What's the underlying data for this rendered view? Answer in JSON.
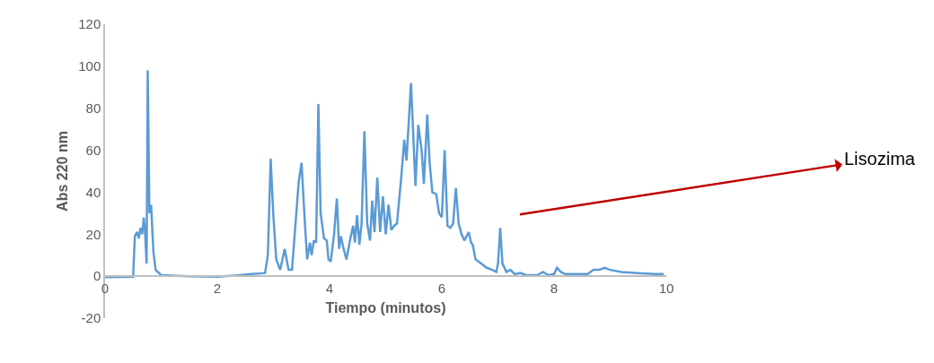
{
  "chart_data": {
    "type": "line",
    "xlabel": "Tiempo (minutos)",
    "ylabel": "Abs 220 nm",
    "x": [
      0,
      0.5,
      0.53,
      0.57,
      0.6,
      0.63,
      0.66,
      0.69,
      0.71,
      0.74,
      0.76,
      0.79,
      0.82,
      0.86,
      0.9,
      1.0,
      1.5,
      2.0,
      2.4,
      2.6,
      2.85,
      2.9,
      2.95,
      3.0,
      3.05,
      3.12,
      3.2,
      3.27,
      3.33,
      3.45,
      3.5,
      3.55,
      3.6,
      3.65,
      3.68,
      3.72,
      3.76,
      3.8,
      3.84,
      3.9,
      3.95,
      3.98,
      4.02,
      4.08,
      4.13,
      4.17,
      4.2,
      4.25,
      4.3,
      4.37,
      4.42,
      4.45,
      4.49,
      4.53,
      4.57,
      4.62,
      4.67,
      4.72,
      4.76,
      4.8,
      4.85,
      4.9,
      4.95,
      5.0,
      5.05,
      5.1,
      5.15,
      5.2,
      5.28,
      5.33,
      5.37,
      5.45,
      5.53,
      5.58,
      5.64,
      5.68,
      5.74,
      5.78,
      5.83,
      5.9,
      5.95,
      6.0,
      6.05,
      6.1,
      6.15,
      6.2,
      6.25,
      6.3,
      6.35,
      6.4,
      6.48,
      6.52,
      6.55,
      6.6,
      6.7,
      6.8,
      6.9,
      6.97,
      7.0,
      7.04,
      7.08,
      7.15,
      7.22,
      7.3,
      7.4,
      7.5,
      7.7,
      7.8,
      7.9,
      8.0,
      8.05,
      8.12,
      8.2,
      8.5,
      8.6,
      8.7,
      8.8,
      8.9,
      9.0,
      9.2,
      9.5,
      9.8,
      9.95
    ],
    "series": [
      {
        "color": "#5b9bd5",
        "values": [
          -0.5,
          -0.3,
          19,
          21,
          18,
          23,
          20,
          28,
          22,
          6,
          98,
          30,
          34,
          12,
          3,
          0.5,
          0,
          -0.3,
          0.5,
          1,
          1.5,
          10,
          56,
          28,
          8,
          3,
          13,
          3,
          3,
          45,
          54,
          30,
          8,
          16,
          10,
          17,
          16,
          82,
          30,
          18,
          17,
          8,
          7,
          20,
          37,
          13,
          19,
          13,
          8,
          18,
          24,
          16,
          29,
          15,
          25,
          69,
          25,
          17,
          36,
          21,
          47,
          21,
          38,
          20,
          34,
          22,
          24,
          25,
          48,
          65,
          55,
          92,
          43,
          72,
          60,
          44,
          77,
          55,
          40,
          39,
          30,
          28,
          60,
          24,
          23,
          25,
          42,
          25,
          20,
          17,
          21,
          16,
          15,
          8,
          6,
          4,
          3,
          2,
          6,
          23,
          6,
          2,
          3,
          1,
          1.5,
          0.5,
          0.5,
          2,
          0.5,
          1,
          4,
          2,
          1,
          1,
          1,
          3,
          3,
          4,
          3,
          2,
          1.5,
          1,
          1
        ]
      }
    ],
    "xlim": [
      0,
      10
    ],
    "xticks": [
      0,
      2,
      4,
      6,
      8,
      10
    ],
    "ylim": [
      -20,
      120
    ],
    "yticks": [
      -20,
      0,
      20,
      40,
      60,
      80,
      100,
      120
    ],
    "grid": false,
    "annotations": [
      "Lisozima"
    ]
  }
}
